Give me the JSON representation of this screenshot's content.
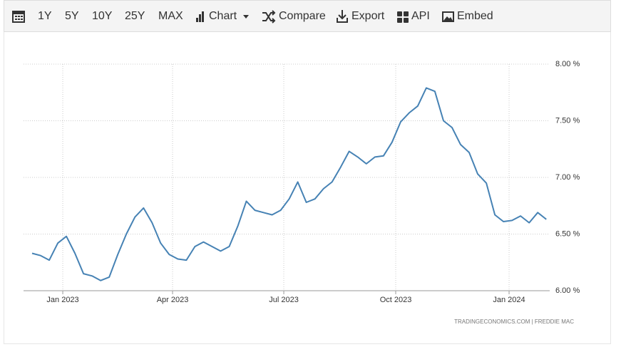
{
  "toolbar": {
    "buttons": [
      "1Y",
      "5Y",
      "10Y",
      "25Y",
      "MAX",
      "Chart",
      "Compare",
      "Export",
      "API",
      "Embed"
    ]
  },
  "chart_data": {
    "type": "line",
    "source": "TRADINGECONOMICS.COM | FREDDIE MAC",
    "color": "#4682b4",
    "grid": true,
    "values": [
      6.33,
      6.31,
      6.27,
      6.42,
      6.48,
      6.33,
      6.15,
      6.13,
      6.09,
      6.12,
      6.32,
      6.5,
      6.65,
      6.73,
      6.6,
      6.42,
      6.32,
      6.28,
      6.27,
      6.39,
      6.43,
      6.39,
      6.35,
      6.39,
      6.57,
      6.79,
      6.71,
      6.69,
      6.67,
      6.71,
      6.81,
      6.96,
      6.78,
      6.81,
      6.9,
      6.96,
      7.09,
      7.23,
      7.18,
      7.12,
      7.18,
      7.19,
      7.31,
      7.49,
      7.57,
      7.63,
      7.79,
      7.76,
      7.5,
      7.44,
      7.29,
      7.22,
      7.03,
      6.95,
      6.67,
      6.61,
      6.62,
      6.66,
      6.6,
      6.69,
      6.63
    ],
    "xlim": [
      -1,
      60.4
    ],
    "xticks": [
      {
        "value": 3.58,
        "label": "Jan 2023"
      },
      {
        "value": 16.39,
        "label": "Apr 2023"
      },
      {
        "value": 29.37,
        "label": "Jul 2023"
      },
      {
        "value": 42.43,
        "label": "Oct 2023"
      },
      {
        "value": 55.66,
        "label": "Jan 2024"
      }
    ],
    "ylim": [
      6,
      8
    ],
    "yticks": [
      {
        "value": 6,
        "label": "6.00 %"
      },
      {
        "value": 6.5,
        "label": "6.50 %"
      },
      {
        "value": 7,
        "label": "7.00 %"
      },
      {
        "value": 7.5,
        "label": "7.50 %"
      },
      {
        "value": 8,
        "label": "8.00 %"
      }
    ]
  }
}
